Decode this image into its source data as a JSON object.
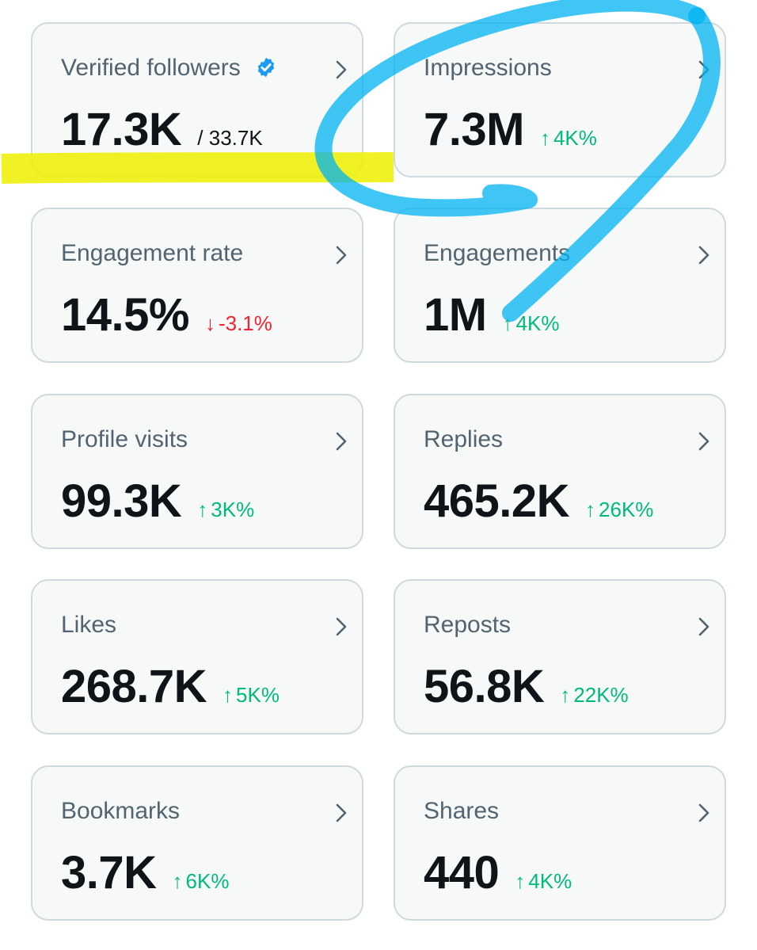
{
  "colors": {
    "positive": "#00ba7c",
    "negative": "#f4212e",
    "label": "#536471",
    "value": "#0f1419",
    "card_bg": "#f7f9f9",
    "card_border": "#cfd9de",
    "verified_badge": "#1d9bf0",
    "highlighter_yellow": "#eef000",
    "marker_blue": "#00b3f0"
  },
  "cards": [
    {
      "label": "Verified followers",
      "value": "17.3K",
      "total": "/ 33.7K",
      "verified": true
    },
    {
      "label": "Impressions",
      "value": "7.3M",
      "delta": "4K%",
      "direction": "up"
    },
    {
      "label": "Engagement rate",
      "value": "14.5%",
      "delta": "-3.1%",
      "direction": "down"
    },
    {
      "label": "Engagements",
      "value": "1M",
      "delta": "4K%",
      "direction": "up"
    },
    {
      "label": "Profile visits",
      "value": "99.3K",
      "delta": "3K%",
      "direction": "up"
    },
    {
      "label": "Replies",
      "value": "465.2K",
      "delta": "26K%",
      "direction": "up"
    },
    {
      "label": "Likes",
      "value": "268.7K",
      "delta": "5K%",
      "direction": "up"
    },
    {
      "label": "Reposts",
      "value": "56.8K",
      "delta": "22K%",
      "direction": "up"
    },
    {
      "label": "Bookmarks",
      "value": "3.7K",
      "delta": "6K%",
      "direction": "up"
    },
    {
      "label": "Shares",
      "value": "440",
      "delta": "4K%",
      "direction": "up"
    }
  ],
  "icons": {
    "chevron": "chevron-right-icon",
    "verified": "verified-badge-icon",
    "arrow_up": "arrow-up-icon",
    "arrow_down": "arrow-down-icon"
  }
}
